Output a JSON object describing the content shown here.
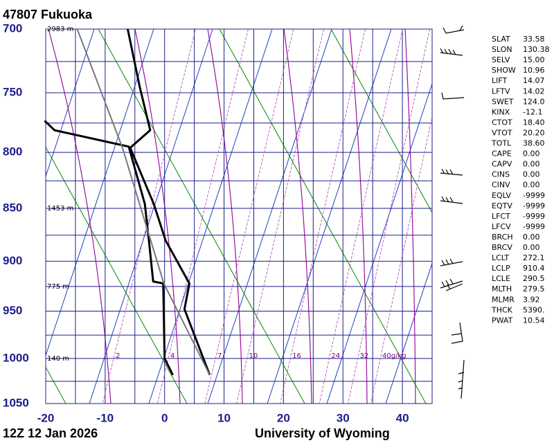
{
  "chart_data": {
    "type": "skewt",
    "title": "47807  Fukuoka",
    "footer_left": "12Z 12 Jan 2026",
    "footer_right": "University of Wyoming",
    "xlim": [
      -20,
      45
    ],
    "xticks": [
      -20,
      -10,
      0,
      10,
      20,
      30,
      40
    ],
    "xgrid": [
      -20,
      -15,
      -10,
      -5,
      0,
      5,
      10,
      15,
      20,
      25,
      30,
      35,
      40,
      45
    ],
    "ylim": [
      700,
      1050
    ],
    "yticks": [
      700,
      750,
      800,
      850,
      900,
      950,
      1000,
      1050
    ],
    "ygrid": [
      700,
      725,
      750,
      775,
      800,
      825,
      850,
      875,
      900,
      925,
      950,
      975,
      1000,
      1025,
      1050
    ],
    "log_y": true,
    "height_labels": [
      {
        "pressure": 700,
        "label": "2983 m"
      },
      {
        "pressure": 850,
        "label": "1453 m"
      },
      {
        "pressure": 925,
        "label": "775 m"
      },
      {
        "pressure": 1000,
        "label": "140 m"
      }
    ],
    "mixing_ratios": [
      {
        "value": 2,
        "label": "2"
      },
      {
        "value": 4,
        "label": "4"
      },
      {
        "value": 7,
        "label": "7"
      },
      {
        "value": 10,
        "label": "10"
      },
      {
        "value": 16,
        "label": "16"
      },
      {
        "value": 24,
        "label": "24"
      },
      {
        "value": 32,
        "label": "32"
      },
      {
        "value": 40,
        "label": "40g/kg"
      }
    ],
    "series": [
      {
        "color": "#000000",
        "width": 3,
        "pressure": [
          1018,
          948,
          922,
          880,
          846,
          796,
          781,
          745,
          700
        ],
        "values": [
          8.5,
          0.6,
          0.0,
          -6.4,
          -10.4,
          -17.5,
          -15.1,
          -19.3,
          -24.5
        ]
      },
      {
        "color": "#000000",
        "width": 3,
        "pressure": [
          1018,
          1000,
          922,
          920,
          880,
          846,
          795,
          781,
          773
        ],
        "values": [
          2.3,
          0.0,
          -4.4,
          -6.2,
          -9.2,
          -11.9,
          -17.8,
          -31.2,
          -33.4
        ]
      },
      {
        "color": "#777777",
        "width": 2,
        "pressure": [
          1018,
          922,
          796,
          700
        ],
        "values": [
          8.5,
          -4.3,
          -18.8,
          -33.0
        ]
      }
    ],
    "stats": [
      [
        "SLAT",
        "33.58"
      ],
      [
        "SLON",
        "130.38"
      ],
      [
        "SELV",
        "15.00"
      ],
      [
        "SHOW",
        "10.96"
      ],
      [
        "LIFT",
        "14.07"
      ],
      [
        "LFTV",
        "14.02"
      ],
      [
        "SWET",
        "124.0"
      ],
      [
        "KINX",
        "-12.1"
      ],
      [
        "CTOT",
        "18.40"
      ],
      [
        "VTOT",
        "20.20"
      ],
      [
        "TOTL",
        "38.60"
      ],
      [
        "CAPE",
        "0.00"
      ],
      [
        "CAPV",
        "0.00"
      ],
      [
        "CINS",
        "0.00"
      ],
      [
        "CINV",
        "0.00"
      ],
      [
        "EQLV",
        "-9999"
      ],
      [
        "EQTV",
        "-9999"
      ],
      [
        "LFCT",
        "-9999"
      ],
      [
        "LFCV",
        "-9999"
      ],
      [
        "BRCH",
        "0.00"
      ],
      [
        "BRCV",
        "0.00"
      ],
      [
        "LCLT",
        "272.1"
      ],
      [
        "LCLP",
        "910.4"
      ],
      [
        "LCLE",
        "290.5"
      ],
      [
        "MLTH",
        "279.5"
      ],
      [
        "MLMR",
        "3.92"
      ],
      [
        "THCK",
        "5390."
      ],
      [
        "PWAT",
        "10.54"
      ]
    ]
  }
}
